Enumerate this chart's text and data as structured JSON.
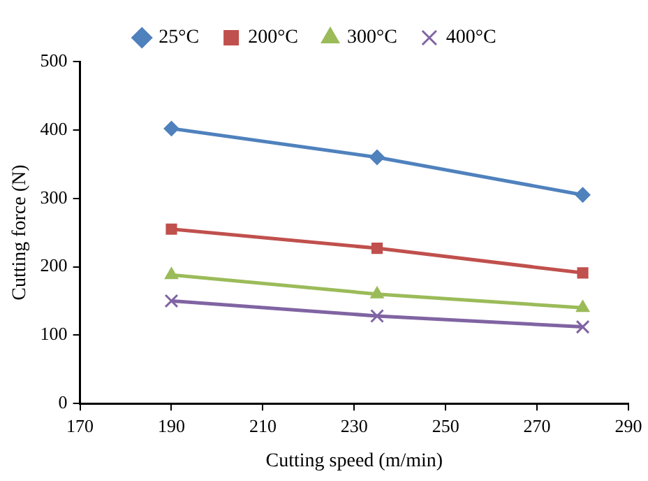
{
  "chart_data": {
    "type": "line",
    "xlabel": "Cutting speed (m/min)",
    "ylabel": "Cutting force (N)",
    "x": [
      190,
      235,
      280
    ],
    "series": [
      {
        "name": "25°C",
        "color": "#4f81bd",
        "marker": "diamond",
        "values": [
          402,
          360,
          305
        ]
      },
      {
        "name": "200°C",
        "color": "#c0504d",
        "marker": "square",
        "values": [
          255,
          227,
          191
        ]
      },
      {
        "name": "300°C",
        "color": "#9bbb59",
        "marker": "triangle",
        "values": [
          188,
          160,
          140
        ]
      },
      {
        "name": "400°C",
        "color": "#8064a2",
        "marker": "cross",
        "values": [
          150,
          128,
          112
        ]
      }
    ],
    "xlim": [
      170,
      290
    ],
    "xticks": [
      170,
      190,
      210,
      230,
      250,
      270,
      290
    ],
    "ylim": [
      0,
      500
    ],
    "yticks": [
      0,
      100,
      200,
      300,
      400,
      500
    ],
    "legend": "top",
    "line_style": "solid"
  }
}
